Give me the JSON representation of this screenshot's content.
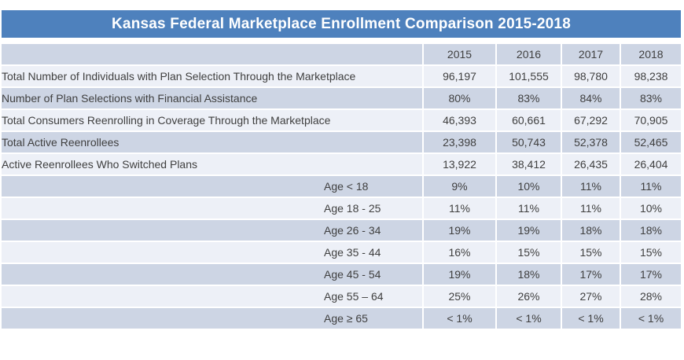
{
  "title": "Kansas Federal Marketplace Enrollment Comparison 2015-2018",
  "colors": {
    "title_bar": "#4e81bd",
    "band_dark": "#cdd5e4",
    "band_light": "#edf0f7",
    "text": "#3f3f3f"
  },
  "chart_data": {
    "type": "table",
    "title": "Kansas Federal Marketplace Enrollment Comparison 2015-2018",
    "year_columns": [
      "2015",
      "2016",
      "2017",
      "2018"
    ],
    "corner_header": "",
    "rows": [
      {
        "label": "Total Number of Individuals with Plan Selection Through the Marketplace",
        "indent": false,
        "values": [
          "96,197",
          "101,555",
          "98,780",
          "98,238"
        ]
      },
      {
        "label": "Number of Plan Selections with Financial Assistance",
        "indent": false,
        "values": [
          "80%",
          "83%",
          "84%",
          "83%"
        ]
      },
      {
        "label": "Total Consumers Reenrolling in Coverage Through the Marketplace",
        "indent": false,
        "values": [
          "46,393",
          "60,661",
          "67,292",
          "70,905"
        ]
      },
      {
        "label": "Total Active Reenrollees",
        "indent": false,
        "values": [
          "23,398",
          "50,743",
          "52,378",
          "52,465"
        ]
      },
      {
        "label": "Active Reenrollees Who Switched Plans",
        "indent": false,
        "values": [
          "13,922",
          "38,412",
          "26,435",
          "26,404"
        ]
      },
      {
        "label": "Age < 18",
        "indent": true,
        "values": [
          "9%",
          "10%",
          "11%",
          "11%"
        ]
      },
      {
        "label": "Age 18 - 25",
        "indent": true,
        "values": [
          "11%",
          "11%",
          "11%",
          "10%"
        ]
      },
      {
        "label": "Age 26 - 34",
        "indent": true,
        "values": [
          "19%",
          "19%",
          "18%",
          "18%"
        ]
      },
      {
        "label": "Age 35 - 44",
        "indent": true,
        "values": [
          "16%",
          "15%",
          "15%",
          "15%"
        ]
      },
      {
        "label": "Age 45 - 54",
        "indent": true,
        "values": [
          "19%",
          "18%",
          "17%",
          "17%"
        ]
      },
      {
        "label": "Age 55 – 64",
        "indent": true,
        "values": [
          "25%",
          "26%",
          "27%",
          "28%"
        ]
      },
      {
        "label": "Age ≥ 65",
        "indent": true,
        "values": [
          "< 1%",
          "< 1%",
          "< 1%",
          "< 1%"
        ]
      }
    ]
  }
}
